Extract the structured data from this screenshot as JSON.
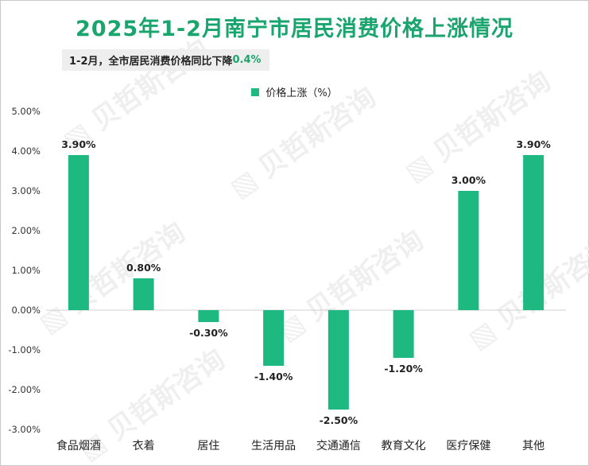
{
  "title": "2025年1-2月南宁市居民消费价格上涨情况",
  "subtitle": {
    "text": "1-2月，全市居民消费价格同比下降",
    "highlight": "0.4%"
  },
  "legend": {
    "label": "价格上涨（%）",
    "color": "#1db981"
  },
  "colors": {
    "accent": "#1aa56f",
    "bar": "#1db981"
  },
  "chart_data": {
    "type": "bar",
    "title": "2025年1-2月南宁市居民消费价格上涨情况",
    "categories": [
      "食品烟酒",
      "衣着",
      "居住",
      "生活用品",
      "交通通信",
      "教育文化",
      "医疗保健",
      "其他"
    ],
    "series": [
      {
        "name": "价格上涨（%）",
        "values": [
          3.9,
          0.8,
          -0.3,
          -1.4,
          -2.5,
          -1.2,
          3.0,
          3.9
        ]
      }
    ],
    "data_labels": [
      "3.90%",
      "0.80%",
      "-0.30%",
      "-1.40%",
      "-2.50%",
      "-1.20%",
      "3.00%",
      "3.90%"
    ],
    "yticks": [
      "5.00%",
      "4.00%",
      "3.00%",
      "2.00%",
      "1.00%",
      "0.00%",
      "-1.00%",
      "-2.00%",
      "-3.00%"
    ],
    "ylim": [
      -3,
      5
    ],
    "grid": false,
    "legend_position": "top-center"
  }
}
